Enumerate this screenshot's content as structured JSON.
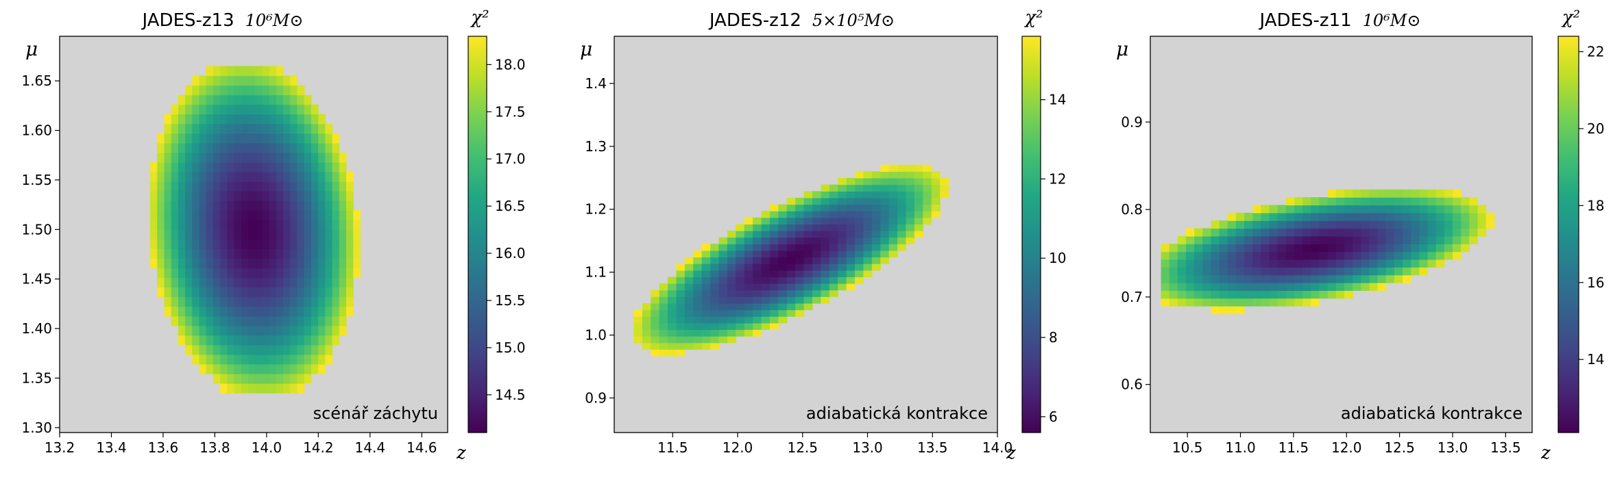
{
  "chart_data": [
    {
      "type": "heatmap",
      "title": "JADES-z13",
      "mass_label": "10⁶M⊙",
      "xlabel": "z",
      "ylabel": "μ",
      "colorbar_label": "χ²",
      "annotation": "scénář záchytu",
      "xlim": [
        13.2,
        14.7
      ],
      "ylim": [
        1.295,
        1.695
      ],
      "xticks": [
        "13.2",
        "13.4",
        "13.6",
        "13.8",
        "14.0",
        "14.2",
        "14.4",
        "14.6"
      ],
      "xtick_values": [
        13.2,
        13.4,
        13.6,
        13.8,
        14.0,
        14.2,
        14.4,
        14.6
      ],
      "yticks": [
        "1.30",
        "1.35",
        "1.40",
        "1.45",
        "1.50",
        "1.55",
        "1.60",
        "1.65"
      ],
      "ytick_values": [
        1.3,
        1.35,
        1.4,
        1.45,
        1.5,
        1.55,
        1.6,
        1.65
      ],
      "clim": [
        14.1,
        18.3
      ],
      "cticks": [
        "14.5",
        "15.0",
        "15.5",
        "16.0",
        "16.5",
        "17.0",
        "17.5",
        "18.0"
      ],
      "ctick_values": [
        14.5,
        15.0,
        15.5,
        16.0,
        16.5,
        17.0,
        17.5,
        18.0
      ],
      "x_range": [
        13.55,
        14.47
      ],
      "y_range": [
        1.335,
        1.665
      ],
      "grid": [
        34,
        34
      ],
      "min_point": [
        13.95,
        1.5
      ],
      "min_value": 14.1,
      "max_edge_value": 18.3,
      "ellipse_half_axes": [
        0.4,
        0.175
      ],
      "ellipse_tilt": 0.25
    },
    {
      "type": "heatmap",
      "title": "JADES-z12",
      "mass_label": "5×10⁵M⊙",
      "xlabel": "z",
      "ylabel": "μ",
      "colorbar_label": "χ²",
      "annotation": "adiabatická kontrakce",
      "xlim": [
        11.05,
        14.0
      ],
      "ylim": [
        0.845,
        1.475
      ],
      "xticks": [
        "11.5",
        "12.0",
        "12.5",
        "13.0",
        "13.5",
        "14.0"
      ],
      "xtick_values": [
        11.5,
        12.0,
        12.5,
        13.0,
        13.5,
        14.0
      ],
      "yticks": [
        "0.9",
        "1.0",
        "1.1",
        "1.2",
        "1.3",
        "1.4"
      ],
      "ytick_values": [
        0.9,
        1.0,
        1.1,
        1.2,
        1.3,
        1.4
      ],
      "clim": [
        5.6,
        15.6
      ],
      "cticks": [
        "6",
        "8",
        "10",
        "12",
        "14"
      ],
      "ctick_values": [
        6,
        8,
        10,
        12,
        14
      ],
      "x_range": [
        11.2,
        13.95
      ],
      "y_range": [
        0.925,
        1.365
      ],
      "grid": [
        42,
        42
      ],
      "min_point": [
        12.4,
        1.12
      ],
      "min_value": 5.6,
      "max_edge_value": 15.6,
      "ellipse_half_axes": [
        1.45,
        0.08
      ],
      "ellipse_tilt": 0.62
    },
    {
      "type": "heatmap",
      "title": "JADES-z11",
      "mass_label": "10⁶M⊙",
      "xlabel": "z",
      "ylabel": "μ",
      "colorbar_label": "χ²",
      "annotation": "adiabatická kontrakce",
      "xlim": [
        10.15,
        13.75
      ],
      "ylim": [
        0.545,
        0.998
      ],
      "xticks": [
        "10.5",
        "11.0",
        "11.5",
        "12.0",
        "12.5",
        "13.0",
        "13.5"
      ],
      "xtick_values": [
        10.5,
        11.0,
        11.5,
        12.0,
        12.5,
        13.0,
        13.5
      ],
      "yticks": [
        "0.6",
        "0.7",
        "0.8",
        "0.9"
      ],
      "ytick_values": [
        0.6,
        0.7,
        0.8,
        0.9
      ],
      "clim": [
        12.1,
        22.4
      ],
      "cticks": [
        "14",
        "16",
        "18",
        "20",
        "22"
      ],
      "ctick_values": [
        14,
        16,
        18,
        20,
        22
      ],
      "x_range": [
        10.25,
        13.55
      ],
      "y_range": [
        0.592,
        0.965
      ],
      "grid": [
        42,
        42
      ],
      "min_point": [
        11.7,
        0.755
      ],
      "min_value": 12.1,
      "max_edge_value": 22.4,
      "ellipse_half_axes": [
        1.7,
        0.06
      ],
      "ellipse_tilt": 0.2
    }
  ]
}
